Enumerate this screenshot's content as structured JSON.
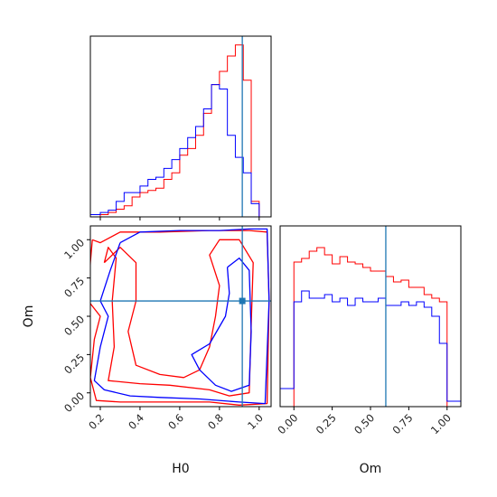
{
  "chart_data": {
    "type": "corner",
    "truth": {
      "H0": 0.915,
      "Om": 0.6
    },
    "series_colors": {
      "red": "#ff0000",
      "blue": "#0000ff",
      "truth": "#1f77b4"
    },
    "labels": {
      "x_bottom_left": "H0",
      "x_bottom_right": "Om",
      "y_left": "Om"
    },
    "ticks": {
      "H0": [
        0.2,
        0.4,
        0.6,
        0.8,
        1.0
      ],
      "Om": [
        0.0,
        0.25,
        0.5,
        0.75,
        1.0
      ],
      "H0_labels": [
        "0.2",
        "0.4",
        "0.6",
        "0.8",
        "1.0"
      ],
      "Om_y_labels": [
        "0.00",
        "0.25",
        "0.50",
        "0.75",
        "1.00"
      ],
      "Om_x_labels": [
        "0.00",
        "0.25",
        "0.50",
        "0.75",
        "1.00"
      ]
    },
    "ranges": {
      "H0": [
        0.15,
        1.06
      ],
      "Om": [
        -0.09,
        1.09
      ]
    },
    "hist_H0": {
      "edges": [
        0.14,
        0.2,
        0.24,
        0.28,
        0.32,
        0.36,
        0.4,
        0.44,
        0.48,
        0.52,
        0.56,
        0.6,
        0.64,
        0.68,
        0.72,
        0.76,
        0.8,
        0.84,
        0.88,
        0.92,
        0.96,
        1.0,
        1.06
      ],
      "series": [
        {
          "color": "red",
          "values": [
            0,
            0.01,
            0.02,
            0.035,
            0.05,
            0.09,
            0.11,
            0.12,
            0.13,
            0.17,
            0.2,
            0.28,
            0.31,
            0.37,
            0.47,
            0.6,
            0.66,
            0.73,
            0.78,
            0.62,
            0.07,
            0
          ]
        },
        {
          "color": "blue",
          "values": [
            0.01,
            0.02,
            0.03,
            0.07,
            0.11,
            0.11,
            0.14,
            0.17,
            0.18,
            0.22,
            0.26,
            0.31,
            0.36,
            0.41,
            0.49,
            0.6,
            0.58,
            0.37,
            0.27,
            0.2,
            0.06,
            0
          ]
        }
      ],
      "ylim": [
        0,
        0.82
      ]
    },
    "hist_Om": {
      "edges": [
        -0.09,
        0.0,
        0.05,
        0.1,
        0.15,
        0.2,
        0.25,
        0.3,
        0.35,
        0.4,
        0.45,
        0.5,
        0.55,
        0.6,
        0.65,
        0.7,
        0.75,
        0.8,
        0.85,
        0.9,
        0.95,
        1.0,
        1.09
      ],
      "series": [
        {
          "color": "red",
          "values": [
            0,
            0.8,
            0.82,
            0.86,
            0.88,
            0.84,
            0.79,
            0.83,
            0.8,
            0.79,
            0.77,
            0.75,
            0.75,
            0.72,
            0.69,
            0.7,
            0.66,
            0.66,
            0.62,
            0.6,
            0.58,
            0
          ]
        },
        {
          "color": "blue",
          "values": [
            0.1,
            0.58,
            0.64,
            0.6,
            0.6,
            0.62,
            0.58,
            0.6,
            0.56,
            0.6,
            0.58,
            0.58,
            0.6,
            0.56,
            0.56,
            0.58,
            0.56,
            0.58,
            0.55,
            0.5,
            0.35,
            0.03
          ]
        }
      ],
      "ylim": [
        0,
        1.0
      ]
    },
    "contours_2d": [
      {
        "color": "red",
        "level": "outer",
        "points": [
          [
            0.16,
            1.0
          ],
          [
            0.2,
            0.98
          ],
          [
            0.3,
            1.05
          ],
          [
            0.5,
            1.05
          ],
          [
            0.75,
            1.06
          ],
          [
            0.95,
            1.06
          ],
          [
            1.04,
            1.05
          ],
          [
            1.05,
            0.6
          ],
          [
            1.04,
            -0.07
          ],
          [
            0.9,
            -0.08
          ],
          [
            0.75,
            -0.06
          ],
          [
            0.5,
            -0.06
          ],
          [
            0.3,
            -0.06
          ],
          [
            0.18,
            -0.05
          ],
          [
            0.15,
            0.1
          ],
          [
            0.17,
            0.35
          ],
          [
            0.2,
            0.5
          ],
          [
            0.14,
            0.6
          ],
          [
            0.15,
            0.85
          ],
          [
            0.16,
            1.0
          ]
        ]
      },
      {
        "color": "red",
        "level": "inner",
        "points": [
          [
            0.22,
            0.85
          ],
          [
            0.24,
            0.95
          ],
          [
            0.28,
            0.88
          ],
          [
            0.26,
            0.6
          ],
          [
            0.27,
            0.3
          ],
          [
            0.24,
            0.08
          ],
          [
            0.4,
            0.06
          ],
          [
            0.55,
            0.05
          ],
          [
            0.75,
            0.02
          ],
          [
            0.85,
            -0.02
          ],
          [
            0.95,
            0.0
          ],
          [
            0.96,
            0.45
          ],
          [
            0.97,
            0.85
          ],
          [
            0.9,
            1.0
          ],
          [
            0.8,
            1.0
          ],
          [
            0.75,
            0.9
          ],
          [
            0.8,
            0.7
          ],
          [
            0.78,
            0.5
          ],
          [
            0.75,
            0.3
          ],
          [
            0.7,
            0.15
          ],
          [
            0.62,
            0.1
          ],
          [
            0.5,
            0.12
          ],
          [
            0.38,
            0.18
          ],
          [
            0.34,
            0.4
          ],
          [
            0.38,
            0.6
          ],
          [
            0.38,
            0.85
          ],
          [
            0.3,
            0.95
          ],
          [
            0.22,
            0.85
          ]
        ]
      },
      {
        "color": "blue",
        "level": "outer",
        "points": [
          [
            0.3,
            0.98
          ],
          [
            0.4,
            1.05
          ],
          [
            0.6,
            1.06
          ],
          [
            0.8,
            1.06
          ],
          [
            0.95,
            1.07
          ],
          [
            1.04,
            1.07
          ],
          [
            1.05,
            0.6
          ],
          [
            1.03,
            -0.07
          ],
          [
            0.9,
            -0.06
          ],
          [
            0.7,
            -0.04
          ],
          [
            0.5,
            -0.03
          ],
          [
            0.35,
            -0.02
          ],
          [
            0.22,
            0.02
          ],
          [
            0.17,
            0.08
          ],
          [
            0.2,
            0.3
          ],
          [
            0.24,
            0.5
          ],
          [
            0.2,
            0.6
          ],
          [
            0.25,
            0.8
          ],
          [
            0.3,
            0.98
          ]
        ]
      },
      {
        "color": "blue",
        "level": "inner",
        "points": [
          [
            0.84,
            0.82
          ],
          [
            0.9,
            0.88
          ],
          [
            0.95,
            0.8
          ],
          [
            0.96,
            0.4
          ],
          [
            0.95,
            0.05
          ],
          [
            0.86,
            0.01
          ],
          [
            0.78,
            0.05
          ],
          [
            0.7,
            0.15
          ],
          [
            0.66,
            0.25
          ],
          [
            0.75,
            0.32
          ],
          [
            0.83,
            0.5
          ],
          [
            0.85,
            0.65
          ],
          [
            0.84,
            0.82
          ]
        ]
      }
    ]
  }
}
